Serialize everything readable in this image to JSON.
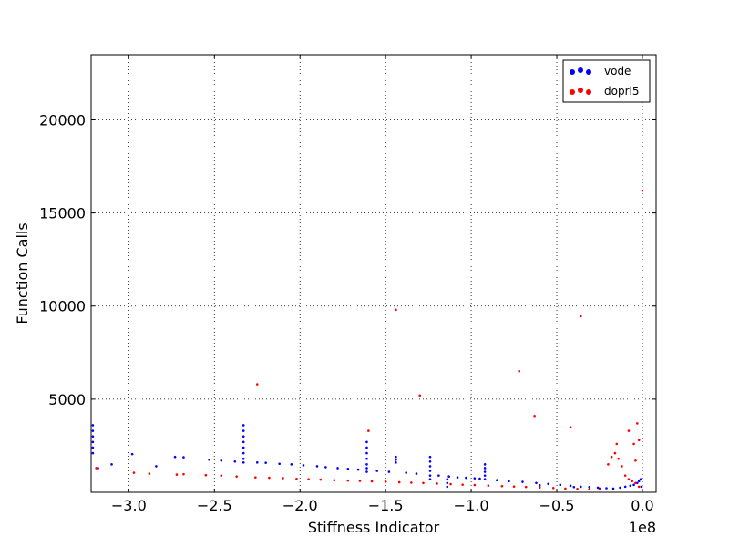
{
  "chart_data": {
    "type": "scatter",
    "title": "",
    "xlabel": "Stiffness Indicator",
    "ylabel": "Function Calls",
    "x_offset_label": "1e8",
    "x_scale": 100000000,
    "xlim": [
      -3.22,
      0.08
    ],
    "ylim": [
      0,
      23500
    ],
    "x_ticks": [
      -3.0,
      -2.5,
      -2.0,
      -1.5,
      -1.0,
      -0.5,
      0.0
    ],
    "x_tick_labels": [
      "−3.0",
      "−2.5",
      "−2.0",
      "−1.5",
      "−1.0",
      "−0.5",
      "0.0"
    ],
    "y_ticks": [
      5000,
      10000,
      15000,
      20000
    ],
    "y_tick_labels": [
      "5000",
      "10000",
      "15000",
      "20000"
    ],
    "grid": true,
    "legend_position": "top-right",
    "series": [
      {
        "name": "vode",
        "color": "#0000ff",
        "points": [
          [
            -3.21,
            3600
          ],
          [
            -3.21,
            3300
          ],
          [
            -3.21,
            3000
          ],
          [
            -3.21,
            2700
          ],
          [
            -3.21,
            2400
          ],
          [
            -3.21,
            2100
          ],
          [
            -3.18,
            1300
          ],
          [
            -3.1,
            1500
          ],
          [
            -2.98,
            2050
          ],
          [
            -2.84,
            1400
          ],
          [
            -2.73,
            1900
          ],
          [
            -2.68,
            1880
          ],
          [
            -2.53,
            1750
          ],
          [
            -2.46,
            1700
          ],
          [
            -2.38,
            1650
          ],
          [
            -2.33,
            3600
          ],
          [
            -2.33,
            3300
          ],
          [
            -2.33,
            3000
          ],
          [
            -2.33,
            2700
          ],
          [
            -2.33,
            2400
          ],
          [
            -2.33,
            2100
          ],
          [
            -2.33,
            1800
          ],
          [
            -2.33,
            1600
          ],
          [
            -2.25,
            1600
          ],
          [
            -2.2,
            1580
          ],
          [
            -2.12,
            1530
          ],
          [
            -2.05,
            1500
          ],
          [
            -1.98,
            1450
          ],
          [
            -1.9,
            1400
          ],
          [
            -1.85,
            1350
          ],
          [
            -1.78,
            1300
          ],
          [
            -1.72,
            1260
          ],
          [
            -1.66,
            1220
          ],
          [
            -1.61,
            2700
          ],
          [
            -1.61,
            2400
          ],
          [
            -1.61,
            2100
          ],
          [
            -1.61,
            1800
          ],
          [
            -1.61,
            1500
          ],
          [
            -1.61,
            1300
          ],
          [
            -1.61,
            1100
          ],
          [
            -1.55,
            1150
          ],
          [
            -1.48,
            1100
          ],
          [
            -1.44,
            1900
          ],
          [
            -1.44,
            1750
          ],
          [
            -1.44,
            1600
          ],
          [
            -1.38,
            1050
          ],
          [
            -1.32,
            1000
          ],
          [
            -1.24,
            1900
          ],
          [
            -1.24,
            1650
          ],
          [
            -1.24,
            1400
          ],
          [
            -1.24,
            1150
          ],
          [
            -1.24,
            900
          ],
          [
            -1.24,
            700
          ],
          [
            -1.19,
            900
          ],
          [
            -1.13,
            850
          ],
          [
            -1.08,
            800
          ],
          [
            -1.03,
            780
          ],
          [
            -1.14,
            700
          ],
          [
            -1.14,
            500
          ],
          [
            -1.14,
            300
          ],
          [
            -0.98,
            750
          ],
          [
            -0.95,
            730
          ],
          [
            -0.92,
            1500
          ],
          [
            -0.92,
            1300
          ],
          [
            -0.92,
            1100
          ],
          [
            -0.92,
            900
          ],
          [
            -0.92,
            700
          ],
          [
            -0.85,
            650
          ],
          [
            -0.78,
            600
          ],
          [
            -0.7,
            560
          ],
          [
            -0.62,
            500
          ],
          [
            -0.55,
            450
          ],
          [
            -0.48,
            400
          ],
          [
            -0.42,
            350
          ],
          [
            -0.36,
            300
          ],
          [
            -0.31,
            280
          ],
          [
            -0.26,
            250
          ],
          [
            -0.21,
            220
          ],
          [
            -0.17,
            200
          ],
          [
            -0.13,
            250
          ],
          [
            -0.1,
            300
          ],
          [
            -0.07,
            350
          ],
          [
            -0.05,
            400
          ],
          [
            -0.03,
            500
          ],
          [
            -0.02,
            600
          ],
          [
            -0.01,
            700
          ],
          [
            -0.005,
            300
          ],
          [
            -0.6,
            380
          ],
          [
            -0.4,
            280
          ],
          [
            -0.25,
            200
          ]
        ]
      },
      {
        "name": "dopri5",
        "color": "#ff0000",
        "points": [
          [
            -3.19,
            1300
          ],
          [
            -2.97,
            1050
          ],
          [
            -2.88,
            1000
          ],
          [
            -2.72,
            950
          ],
          [
            -2.68,
            970
          ],
          [
            -2.55,
            920
          ],
          [
            -2.46,
            900
          ],
          [
            -2.37,
            850
          ],
          [
            -2.26,
            800
          ],
          [
            -2.18,
            780
          ],
          [
            -2.1,
            760
          ],
          [
            -2.02,
            720
          ],
          [
            -1.95,
            700
          ],
          [
            -1.88,
            680
          ],
          [
            -1.8,
            650
          ],
          [
            -1.72,
            630
          ],
          [
            -1.65,
            610
          ],
          [
            -1.58,
            590
          ],
          [
            -1.5,
            570
          ],
          [
            -1.42,
            540
          ],
          [
            -1.35,
            520
          ],
          [
            -1.28,
            500
          ],
          [
            -1.2,
            470
          ],
          [
            -1.12,
            440
          ],
          [
            -1.05,
            410
          ],
          [
            -0.98,
            390
          ],
          [
            -0.9,
            360
          ],
          [
            -0.82,
            330
          ],
          [
            -0.75,
            310
          ],
          [
            -0.68,
            290
          ],
          [
            -0.6,
            260
          ],
          [
            -0.52,
            230
          ],
          [
            -0.45,
            200
          ],
          [
            -0.38,
            180
          ],
          [
            -0.31,
            160
          ],
          [
            -0.25,
            150
          ],
          [
            -0.2,
            1500
          ],
          [
            -0.18,
            1900
          ],
          [
            -0.16,
            2100
          ],
          [
            -0.14,
            1800
          ],
          [
            -0.12,
            1400
          ],
          [
            -0.1,
            900
          ],
          [
            -0.08,
            700
          ],
          [
            -0.06,
            600
          ],
          [
            -0.04,
            500
          ],
          [
            -0.02,
            300
          ],
          [
            -1.44,
            9800
          ],
          [
            -0.36,
            9450
          ],
          [
            -0.72,
            6500
          ],
          [
            -0.63,
            4100
          ],
          [
            -0.42,
            3500
          ],
          [
            -0.08,
            3300
          ],
          [
            -0.05,
            2600
          ],
          [
            -0.02,
            2800
          ],
          [
            0.0,
            16200
          ],
          [
            -1.6,
            3300
          ],
          [
            -1.3,
            5200
          ],
          [
            -2.25,
            5800
          ],
          [
            -0.04,
            1700
          ],
          [
            -0.15,
            2600
          ],
          [
            -0.03,
            3700
          ]
        ]
      }
    ]
  }
}
